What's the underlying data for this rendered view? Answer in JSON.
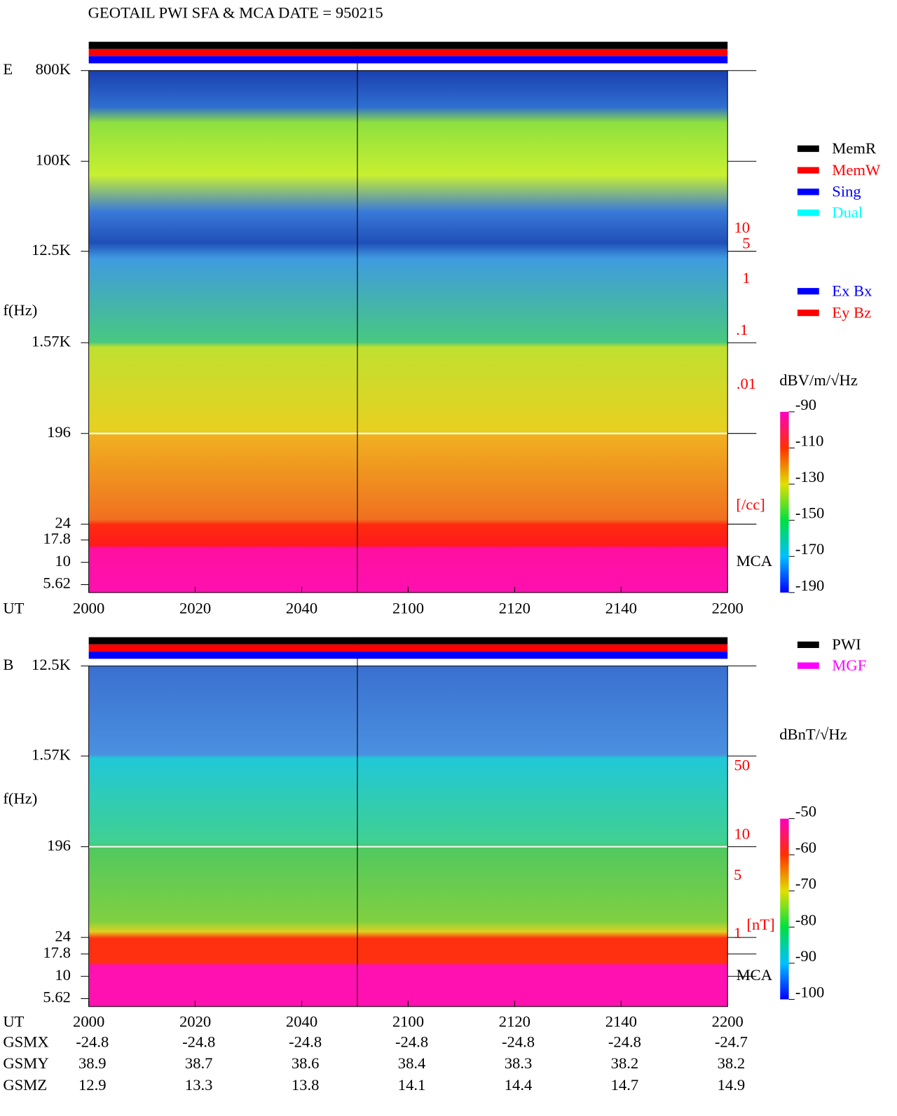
{
  "title": "GEOTAIL   PWI SFA & MCA   DATE = 950215",
  "panels": [
    {
      "label": "E",
      "ylabel": "f(Hz)",
      "yticks": [
        "800K",
        "100K",
        "12.5K",
        "1.57K",
        "196",
        "24",
        "17.8",
        "10",
        "5.62"
      ],
      "density_ticks": [
        "10",
        "5",
        "1",
        ".1",
        ".01",
        "[/cc]"
      ],
      "mca": "MCA",
      "unit": "dBV/m/√Hz",
      "colorbar_ticks": [
        -90,
        -110,
        -130,
        -150,
        -170,
        -190
      ]
    },
    {
      "label": "B",
      "ylabel": "f(Hz)",
      "yticks": [
        "12.5K",
        "1.57K",
        "196",
        "24",
        "17.8",
        "10",
        "5.62"
      ],
      "density_ticks": [
        "50",
        "10",
        "5",
        "1",
        "[nT]"
      ],
      "mca": "MCA",
      "unit": "dBnT/√Hz",
      "colorbar_ticks": [
        -50,
        -60,
        -70,
        -80,
        -90,
        -100
      ]
    }
  ],
  "x_label": "UT",
  "xticks": [
    "2000",
    "2020",
    "2040",
    "2100",
    "2120",
    "2140",
    "2200"
  ],
  "legend_mode": [
    {
      "name": "MemR",
      "color": "#000000"
    },
    {
      "name": "MemW",
      "color": "#ff0000"
    },
    {
      "name": "Sing",
      "color": "#0000ff"
    },
    {
      "name": "Dual",
      "color": "#00ffff"
    }
  ],
  "legend_ant": [
    {
      "name": "Ex Bx",
      "color": "#0000ff"
    },
    {
      "name": "Ey Bz",
      "color": "#ff0000"
    }
  ],
  "legend_src": [
    {
      "name": "PWI",
      "color": "#000000"
    },
    {
      "name": "MGF",
      "color": "#ff00ff"
    }
  ],
  "orbit": [
    {
      "label": "GSMX",
      "values": [
        -24.8,
        -24.8,
        -24.8,
        -24.8,
        -24.8,
        -24.8,
        -24.7
      ]
    },
    {
      "label": "GSMY",
      "values": [
        38.9,
        38.7,
        38.6,
        38.4,
        38.3,
        38.2,
        38.2
      ]
    },
    {
      "label": "GSMZ",
      "values": [
        12.9,
        13.3,
        13.8,
        14.1,
        14.4,
        14.7,
        14.9
      ]
    }
  ]
}
